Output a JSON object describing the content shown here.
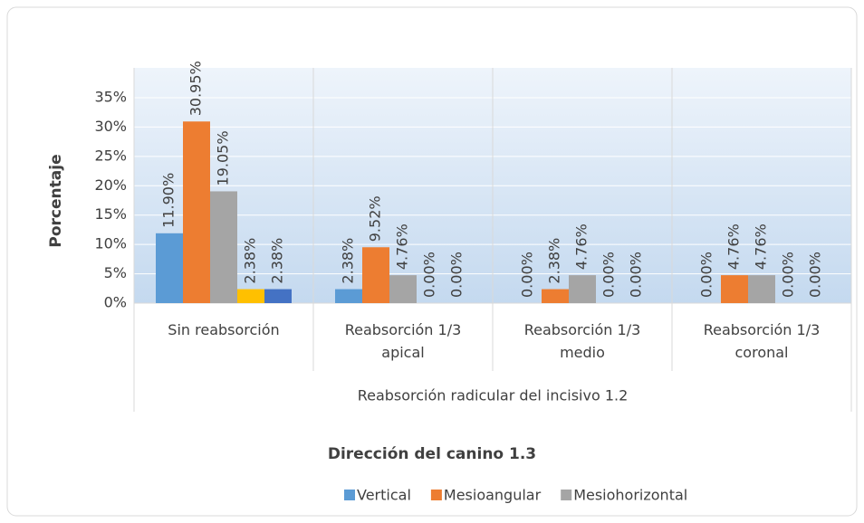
{
  "chart_data": {
    "type": "bar",
    "title": "Dirección del canino 1.3",
    "ylabel": "Porcentaje",
    "xlabel": "Reabsorción radicular del incisivo 1.2",
    "categories": [
      "Sin reabsorción",
      "Reabsorción 1/3 apical",
      "Reabsorción 1/3 medio",
      "Reabsorción 1/3 coronal"
    ],
    "series": [
      {
        "name": "Vertical",
        "color": "#5b9bd5",
        "values": [
          11.9,
          2.38,
          0,
          0
        ],
        "value_labels": [
          "11.90%",
          "2.38%",
          "0.00%",
          "0.00%"
        ]
      },
      {
        "name": "Mesioangular",
        "color": "#ed7d31",
        "values": [
          30.95,
          9.52,
          2.38,
          4.76
        ],
        "value_labels": [
          "30.95%",
          "9.52%",
          "2.38%",
          "4.76%"
        ]
      },
      {
        "name": "Mesiohorizontal",
        "color": "#a5a5a5",
        "values": [
          19.05,
          4.76,
          4.76,
          4.76
        ],
        "value_labels": [
          "19.05%",
          "4.76%",
          "4.76%",
          "4.76%"
        ]
      },
      {
        "color": "#ffc000",
        "values": [
          2.38,
          0,
          0,
          0
        ],
        "value_labels": [
          "2.38%",
          "0.00%",
          "0.00%",
          "0.00%"
        ]
      },
      {
        "color": "#4472c4",
        "values": [
          2.38,
          0,
          0,
          0
        ],
        "value_labels": [
          "2.38%",
          "0.00%",
          "0.00%",
          "0.00%"
        ]
      }
    ],
    "ylim": [
      0,
      35
    ],
    "yticks": [
      {
        "value": 0,
        "label": "0%"
      },
      {
        "value": 5,
        "label": "5%"
      },
      {
        "value": 10,
        "label": "10%"
      },
      {
        "value": 15,
        "label": "15%"
      },
      {
        "value": 20,
        "label": "20%"
      },
      {
        "value": 25,
        "label": "25%"
      },
      {
        "value": 30,
        "label": "30%"
      },
      {
        "value": 35,
        "label": "35%"
      }
    ],
    "grid": true,
    "legend": "bottom"
  }
}
